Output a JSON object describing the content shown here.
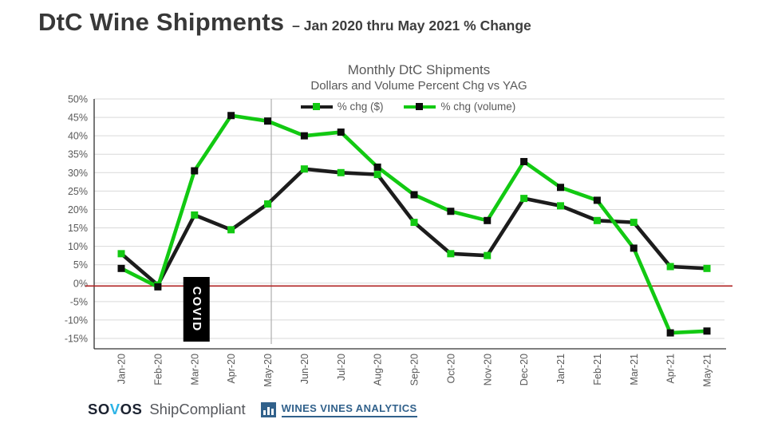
{
  "header": {
    "title": "DtC Wine Shipments",
    "subtitle": "– Jan 2020 thru May 2021 % Change"
  },
  "chart_data": {
    "type": "line",
    "title": "Monthly DtC Shipments",
    "subtitle": "Dollars and Volume Percent Chg vs YAG",
    "categories": [
      "Jan-20",
      "Feb-20",
      "Mar-20",
      "Apr-20",
      "May-20",
      "Jun-20",
      "Jul-20",
      "Aug-20",
      "Sep-20",
      "Oct-20",
      "Nov-20",
      "Dec-20",
      "Jan-21",
      "Feb-21",
      "Mar-21",
      "Apr-21",
      "May-21"
    ],
    "series": [
      {
        "name": "% chg ($)",
        "line_color": "#1c1c1c",
        "marker_color": "#12c912",
        "values": [
          8,
          -0.5,
          18.5,
          14.5,
          21.5,
          31,
          30,
          29.5,
          16.5,
          8,
          7.5,
          23,
          21,
          17,
          16.5,
          4.5,
          4
        ]
      },
      {
        "name": "% chg (volume)",
        "line_color": "#12c912",
        "marker_color": "#0d0d0d",
        "values": [
          4,
          -1,
          30.5,
          45.5,
          44,
          40,
          41,
          31.5,
          24,
          19.5,
          17,
          33,
          26,
          22.5,
          9.5,
          -13.5,
          -13
        ]
      }
    ],
    "y_axis": {
      "min": -15,
      "max": 50,
      "step": 5,
      "suffix": "%"
    },
    "grid": true,
    "legend_position": "top-center",
    "annotations": {
      "covid_label": "COVID",
      "covid_box_color": "#000000",
      "covid_text_color": "#ffffff",
      "covid_at_category": "Mar-20",
      "zero_reference_line_color": "#b02323",
      "vline_category": "May-20",
      "vline_color": "#aeaeae"
    },
    "text_colors": {
      "axis_labels": "#595959",
      "titles": "#595959",
      "gridline": "#d9d9d9",
      "axis_line": "#303030"
    }
  },
  "footer": {
    "sovos": {
      "part1": "SO",
      "part2": "V",
      "part3": "OS"
    },
    "sovos_v_color": "#2bb3e6",
    "shipcompliant": "ShipCompliant",
    "wva": "WINES VINES ANALYTICS",
    "wva_color": "#31618b"
  }
}
